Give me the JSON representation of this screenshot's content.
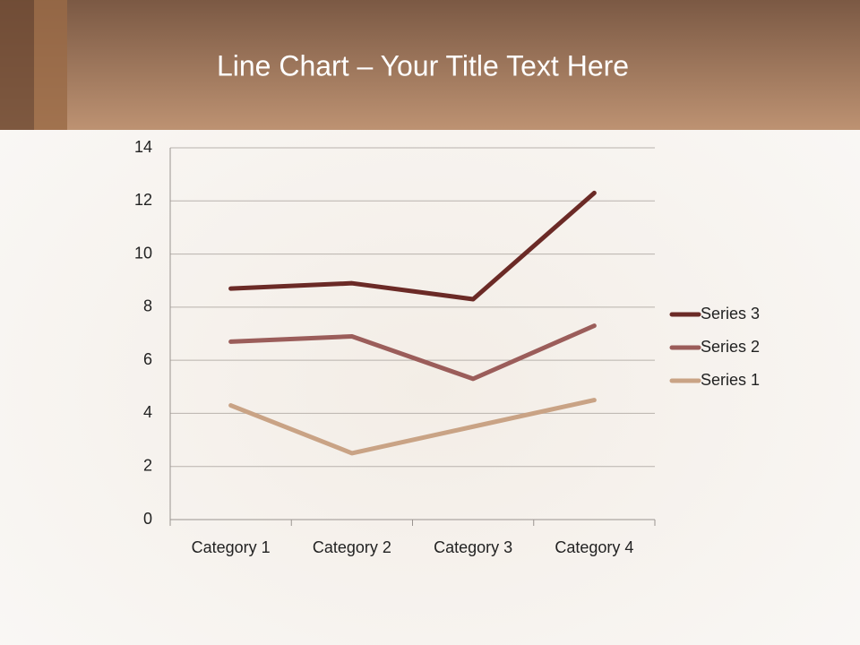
{
  "chart_data": {
    "type": "line",
    "stacked": true,
    "title": "Line Chart – Your Title Text Here",
    "categories": [
      "Category 1",
      "Category 2",
      "Category 3",
      "Category 4"
    ],
    "series": [
      {
        "name": "Series 1",
        "color": "#c9a385",
        "values": [
          4.3,
          2.5,
          3.5,
          4.5
        ]
      },
      {
        "name": "Series 2",
        "color": "#9b5d5a",
        "values": [
          2.4,
          4.4,
          1.8,
          2.8
        ]
      },
      {
        "name": "Series 3",
        "color": "#6b2a26",
        "values": [
          2,
          2,
          3,
          5
        ]
      }
    ],
    "ylim": [
      0,
      14
    ],
    "yticks": [
      0,
      2,
      4,
      6,
      8,
      10,
      12,
      14
    ],
    "grid": true,
    "legend": "right"
  }
}
